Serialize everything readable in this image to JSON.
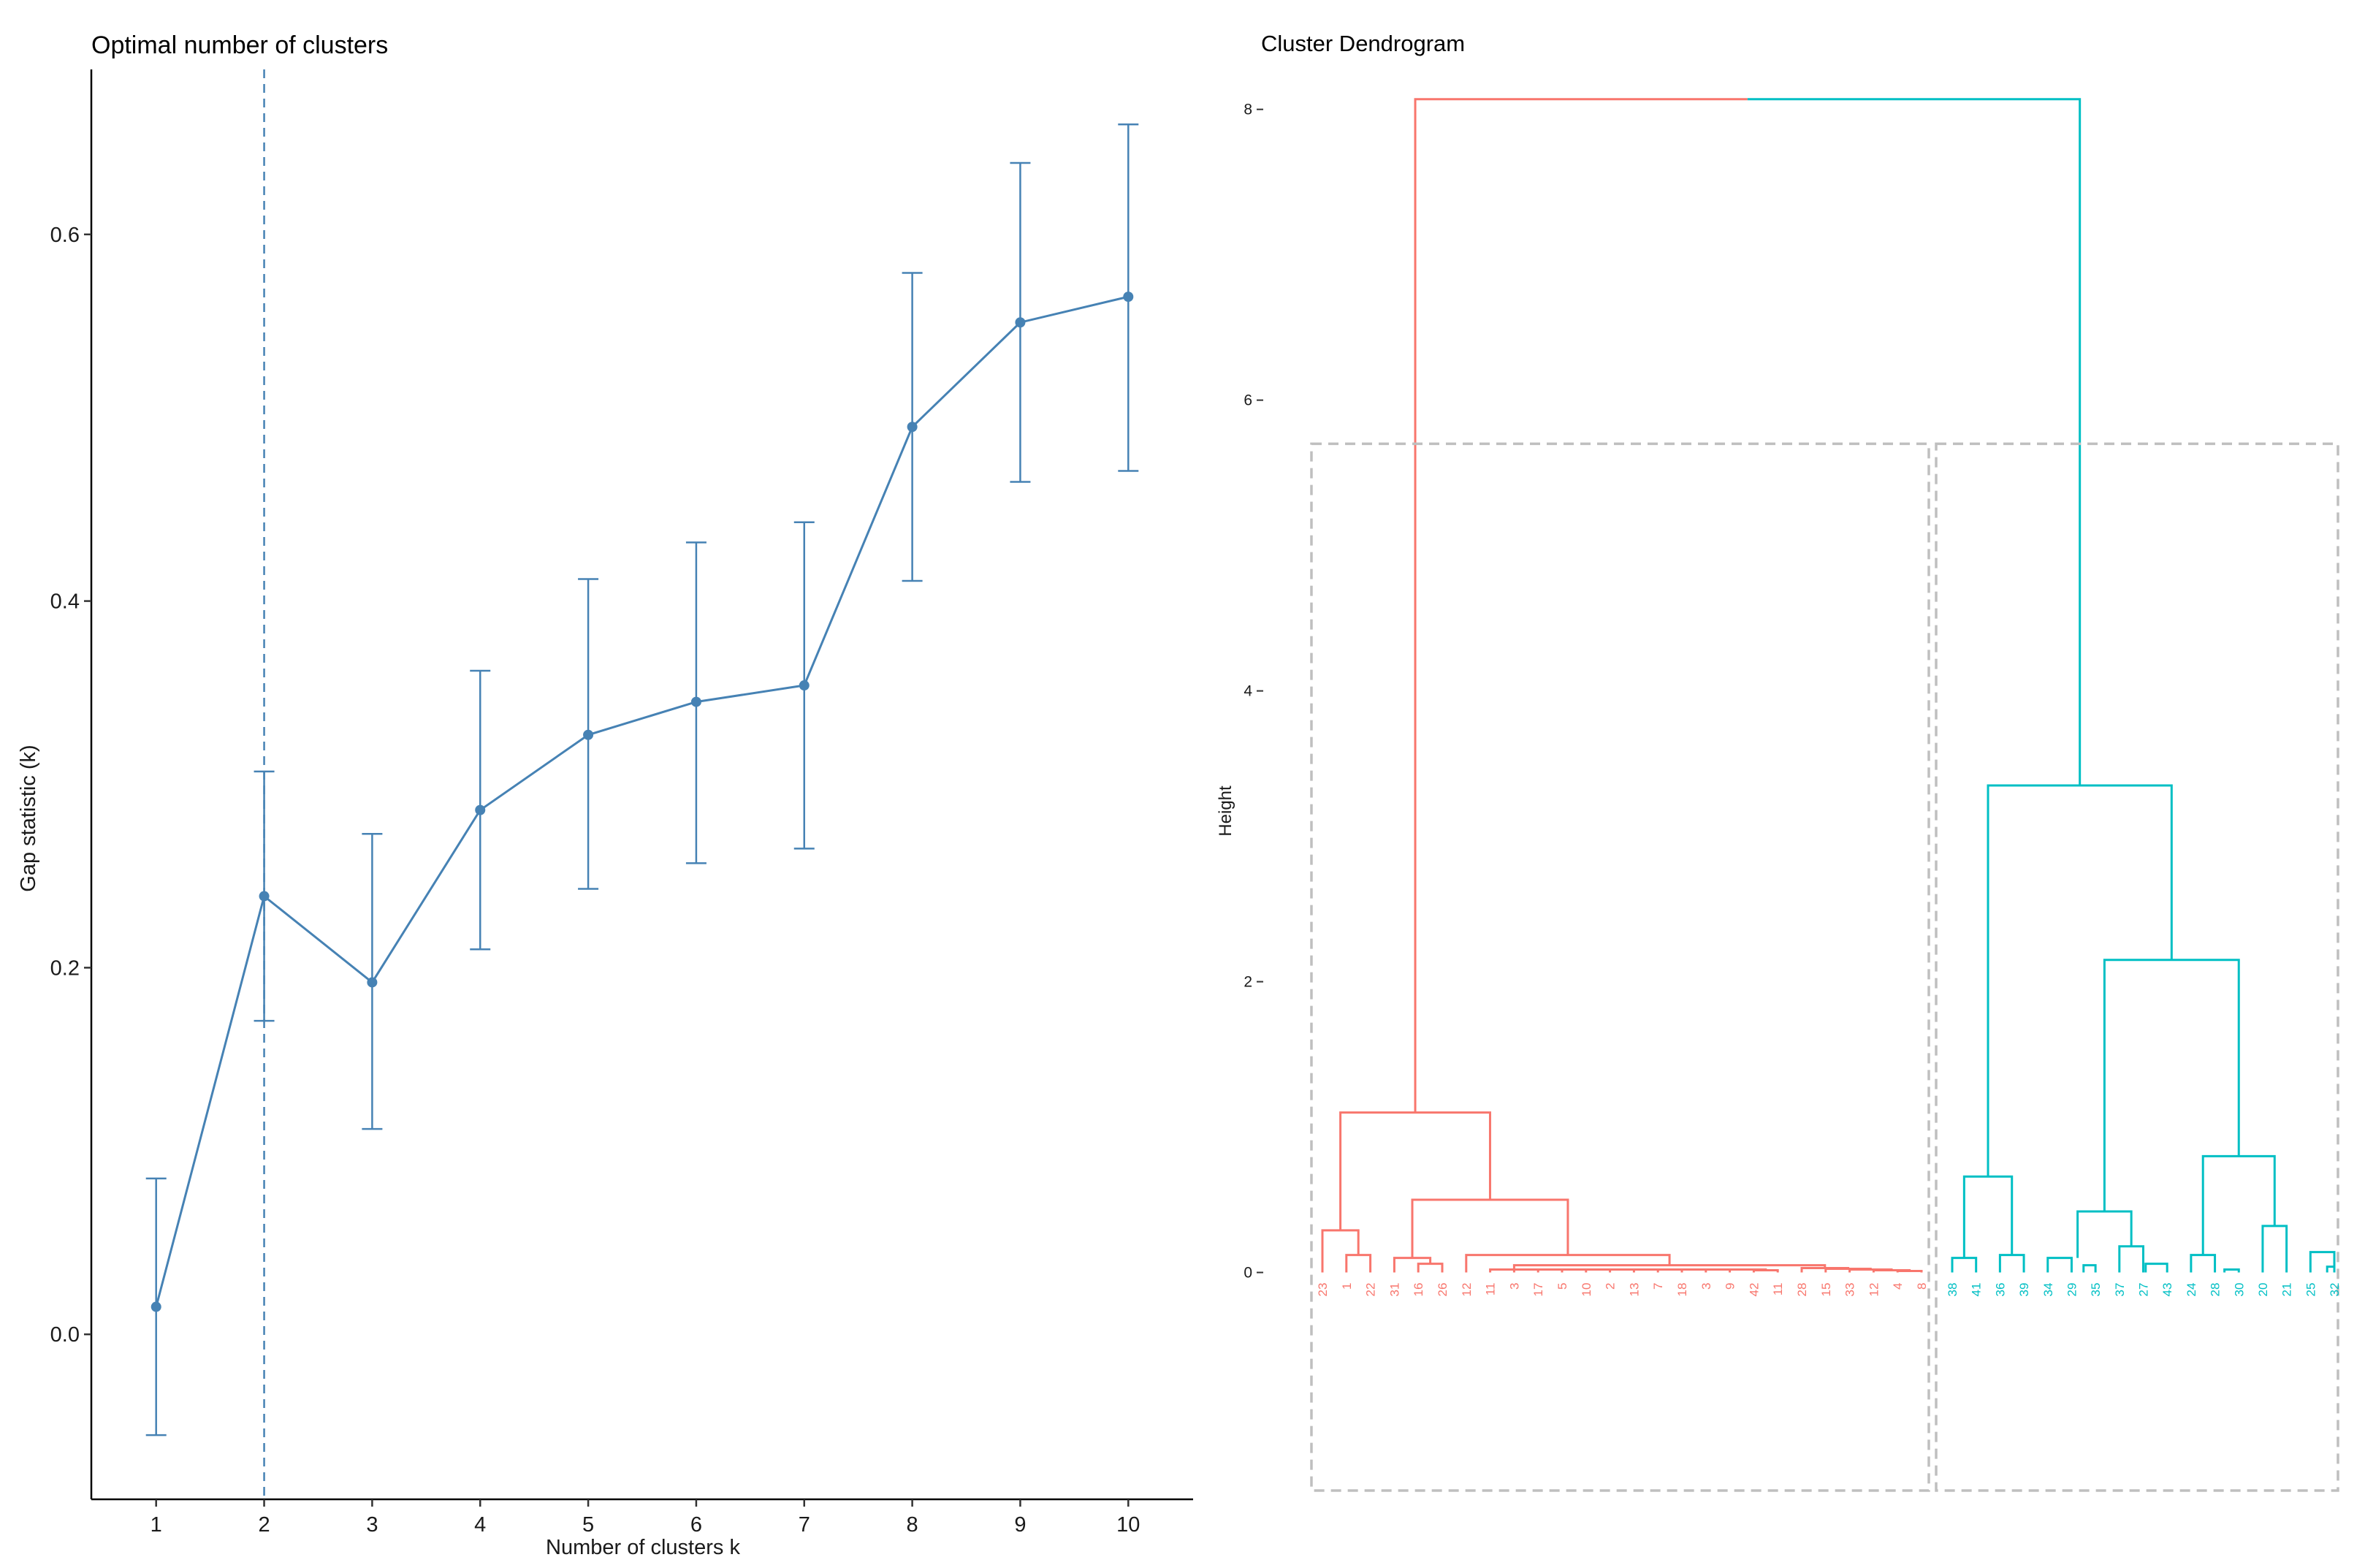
{
  "chart_data": [
    {
      "type": "line",
      "title": "Optimal number of clusters",
      "xlabel": "Number of clusters k",
      "ylabel": "Gap statistic (k)",
      "x": [
        1,
        2,
        3,
        4,
        5,
        6,
        7,
        8,
        9,
        10
      ],
      "x_ticks": [
        "1",
        "2",
        "3",
        "4",
        "5",
        "6",
        "7",
        "8",
        "9",
        "10"
      ],
      "y_ticks": [
        "0.0",
        "0.2",
        "0.4",
        "0.6"
      ],
      "ylim": [
        -0.09,
        0.69
      ],
      "xlim": [
        0.4,
        10.6
      ],
      "series": [
        {
          "values": [
            0.015,
            0.239,
            0.192,
            0.286,
            0.327,
            0.345,
            0.354,
            0.495,
            0.552,
            0.566
          ],
          "error_low": [
            -0.055,
            0.171,
            0.112,
            0.21,
            0.243,
            0.257,
            0.265,
            0.411,
            0.465,
            0.471
          ],
          "error_high": [
            0.085,
            0.307,
            0.273,
            0.362,
            0.412,
            0.432,
            0.443,
            0.579,
            0.639,
            0.66
          ]
        }
      ],
      "optimal_k": 2,
      "color": "#4682b4",
      "grid": false
    },
    {
      "type": "dendrogram",
      "title": "Cluster Dendrogram",
      "ylabel": "Height",
      "y_ticks": [
        "0",
        "2",
        "4",
        "6",
        "8"
      ],
      "ylim": [
        -1.5,
        8.3
      ],
      "clusters": [
        {
          "color": "#f8766d",
          "leaves": [
            "23",
            "1",
            "22",
            "31",
            "16",
            "26",
            "12",
            "11",
            "3",
            "17",
            "5",
            "10",
            "2",
            "13",
            "7",
            "18",
            "3",
            "9",
            "42",
            "11",
            "28",
            "15",
            "33",
            "12",
            "4",
            "8"
          ]
        },
        {
          "color": "#00bfc4",
          "leaves": [
            "38",
            "41",
            "36",
            "39",
            "34",
            "29",
            "35",
            "37",
            "27",
            "43",
            "24",
            "28",
            "30",
            "20",
            "21",
            "25",
            "32"
          ]
        }
      ],
      "merge_heights": {
        "root": 8.07,
        "cluster1_top": 1.1,
        "cluster2_top": 3.35,
        "cluster2_sub": 2.15
      },
      "rect_boxes": 2,
      "box_color": "#bfbfbf"
    }
  ]
}
